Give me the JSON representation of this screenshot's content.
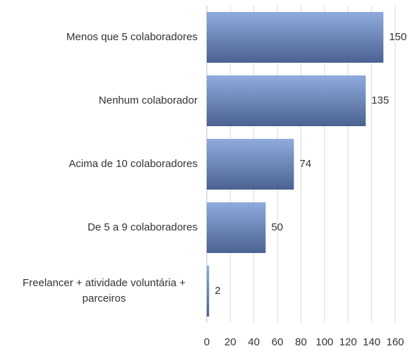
{
  "chart_data": {
    "type": "bar",
    "orientation": "horizontal",
    "categories": [
      "Menos que 5 colaboradores",
      "Nenhum colaborador",
      "Acima de 10 colaboradores",
      "De 5 a 9 colaboradores",
      "Freelancer + atividade voluntária + parceiros"
    ],
    "values": [
      150,
      135,
      74,
      50,
      2
    ],
    "color": "#6f8cc4",
    "xlim": [
      0,
      160
    ],
    "xticks": [
      0,
      20,
      40,
      60,
      80,
      100,
      120,
      140,
      160
    ],
    "grid": true
  }
}
